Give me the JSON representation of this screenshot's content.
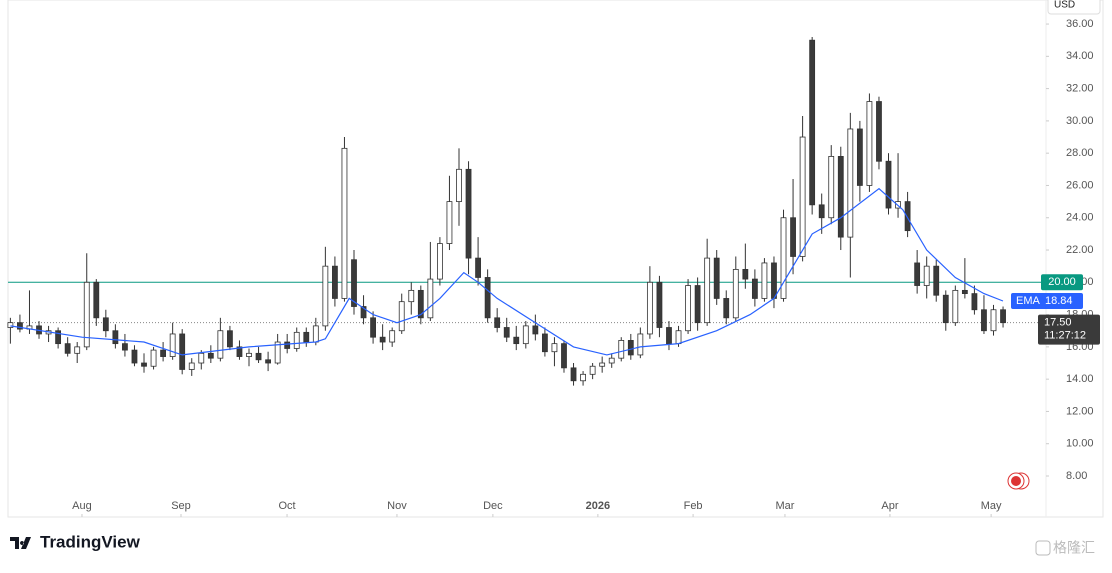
{
  "header": {
    "currency": "USD"
  },
  "chart_data": {
    "type": "candlestick",
    "up_color": "#ffffff",
    "down_color": "#3a3a3a",
    "wick_color": "#333333",
    "x": [
      0,
      2,
      4,
      6,
      8,
      10,
      12,
      14,
      16,
      18,
      20,
      22,
      24,
      26,
      28,
      30,
      32,
      34,
      36,
      38,
      40,
      42,
      44,
      46,
      48,
      50,
      52,
      54,
      56,
      58,
      60,
      62,
      64,
      66,
      68,
      70,
      72,
      74,
      76,
      78,
      80,
      82,
      84,
      86,
      88,
      90,
      92,
      94,
      96,
      98,
      100,
      102,
      104,
      106,
      108,
      110,
      112,
      114,
      116,
      118,
      120,
      122,
      124,
      126,
      128,
      130,
      132,
      134,
      136,
      138,
      140,
      142,
      144,
      146,
      148,
      150,
      152,
      154,
      156,
      158,
      160,
      162,
      164,
      166,
      168,
      170,
      172,
      174,
      176,
      178,
      180,
      182,
      184,
      186,
      188,
      190,
      192,
      194,
      196,
      198,
      200,
      202,
      204,
      206,
      208
    ],
    "open": [
      17.2,
      17.5,
      17.1,
      17.3,
      16.8,
      17.0,
      16.2,
      15.6,
      16.0,
      20.0,
      17.8,
      17.0,
      16.2,
      15.8,
      15.0,
      14.8,
      15.8,
      15.4,
      16.8,
      14.6,
      15.0,
      15.6,
      15.3,
      17.0,
      16.0,
      15.4,
      15.6,
      15.2,
      15.0,
      16.3,
      15.9,
      16.9,
      16.3,
      17.3,
      21.0,
      19.0,
      21.4,
      18.5,
      17.8,
      16.6,
      16.3,
      17.0,
      18.8,
      19.5,
      17.8,
      20.2,
      22.4,
      25.0,
      27.0,
      21.5,
      20.3,
      17.8,
      17.2,
      16.6,
      16.2,
      17.3,
      16.8,
      15.7,
      16.2,
      14.7,
      13.9,
      14.3,
      14.8,
      15.0,
      15.3,
      16.4,
      15.5,
      16.8,
      20.0,
      17.2,
      16.2,
      17.0,
      19.8,
      17.5,
      21.5,
      19.0,
      17.8,
      20.8,
      20.2,
      19.0,
      21.2,
      19.0,
      24.0,
      21.6,
      35.0,
      24.8,
      24.0,
      27.8,
      22.8,
      29.5,
      26.0,
      31.2,
      27.5,
      24.6,
      25.0,
      21.2,
      19.8,
      21.0,
      19.2,
      17.5,
      19.5,
      19.3,
      18.3,
      17.0,
      18.3
    ],
    "high": [
      17.8,
      18.0,
      19.5,
      17.6,
      17.3,
      17.2,
      16.6,
      16.3,
      21.8,
      20.2,
      18.3,
      17.4,
      16.8,
      16.1,
      15.6,
      16.0,
      16.3,
      17.5,
      17.1,
      15.3,
      15.8,
      16.1,
      17.8,
      17.3,
      16.4,
      15.9,
      16.0,
      15.7,
      16.8,
      16.8,
      17.2,
      17.2,
      17.8,
      22.2,
      21.6,
      29.0,
      22.0,
      19.2,
      18.2,
      17.4,
      17.2,
      19.3,
      20.0,
      19.8,
      22.5,
      22.8,
      26.6,
      28.3,
      27.5,
      22.8,
      20.8,
      18.4,
      17.8,
      17.3,
      17.6,
      18.0,
      17.2,
      16.6,
      16.4,
      15.0,
      14.5,
      15.0,
      15.4,
      15.6,
      16.6,
      16.8,
      17.2,
      21.0,
      20.4,
      17.6,
      17.3,
      20.2,
      20.3,
      22.7,
      22.0,
      19.5,
      21.6,
      22.4,
      20.8,
      21.5,
      21.6,
      24.5,
      26.4,
      30.3,
      35.2,
      25.5,
      28.5,
      28.4,
      30.5,
      30.0,
      31.7,
      31.5,
      28.0,
      28.0,
      25.6,
      22.0,
      21.6,
      21.4,
      19.5,
      19.8,
      21.5,
      19.8,
      19.2,
      18.6,
      18.5
    ],
    "low": [
      16.2,
      16.9,
      16.8,
      16.5,
      16.3,
      15.9,
      15.4,
      15.0,
      15.8,
      17.3,
      16.6,
      15.9,
      15.4,
      14.8,
      14.4,
      14.6,
      15.1,
      15.2,
      14.3,
      14.2,
      14.6,
      15.0,
      15.1,
      15.8,
      15.2,
      14.8,
      15.0,
      14.5,
      14.9,
      15.6,
      15.7,
      16.0,
      16.1,
      17.0,
      18.5,
      18.8,
      18.0,
      17.4,
      16.2,
      15.8,
      16.0,
      16.8,
      18.0,
      17.4,
      17.6,
      19.8,
      22.0,
      23.5,
      20.5,
      19.8,
      17.5,
      16.9,
      16.3,
      15.8,
      15.9,
      16.4,
      15.4,
      14.8,
      14.4,
      13.6,
      13.6,
      14.0,
      14.4,
      14.7,
      15.1,
      15.2,
      15.3,
      16.5,
      16.6,
      15.8,
      16.0,
      16.8,
      17.0,
      17.3,
      18.6,
      17.4,
      17.6,
      19.6,
      18.5,
      18.8,
      18.4,
      18.8,
      20.5,
      21.3,
      24.2,
      23.0,
      23.6,
      22.0,
      20.3,
      25.0,
      25.6,
      27.0,
      24.2,
      24.0,
      22.8,
      19.3,
      19.0,
      18.8,
      17.0,
      17.3,
      19.0,
      18.0,
      16.8,
      16.7,
      17.2
    ],
    "close": [
      17.5,
      17.1,
      17.3,
      16.8,
      17.0,
      16.2,
      15.6,
      16.0,
      20.0,
      17.8,
      17.0,
      16.2,
      15.8,
      15.0,
      14.8,
      15.8,
      15.4,
      16.8,
      14.6,
      15.0,
      15.6,
      15.3,
      17.0,
      16.0,
      15.4,
      15.6,
      15.2,
      15.0,
      16.3,
      15.9,
      16.9,
      16.3,
      17.3,
      21.0,
      19.0,
      28.3,
      18.5,
      17.8,
      16.6,
      16.3,
      17.0,
      18.8,
      19.5,
      17.8,
      20.2,
      22.4,
      25.0,
      27.0,
      21.5,
      20.3,
      17.8,
      17.2,
      16.6,
      16.2,
      17.3,
      16.8,
      15.7,
      16.2,
      14.7,
      13.9,
      14.3,
      14.8,
      15.0,
      15.3,
      16.4,
      15.5,
      16.8,
      20.0,
      17.2,
      16.2,
      17.0,
      19.8,
      17.5,
      21.5,
      19.0,
      17.8,
      20.8,
      20.2,
      19.0,
      21.2,
      19.0,
      24.0,
      21.6,
      29.0,
      24.8,
      24.0,
      27.8,
      22.8,
      29.5,
      26.0,
      31.2,
      27.5,
      24.6,
      25.0,
      23.2,
      19.8,
      21.0,
      19.2,
      17.5,
      19.5,
      19.3,
      18.3,
      17.0,
      18.3,
      17.5
    ],
    "ema": {
      "name": "EMA",
      "color": "#2962ff",
      "x": [
        0,
        15,
        28,
        36,
        50,
        64,
        66,
        71,
        76,
        81,
        86,
        90,
        95,
        98,
        102,
        110,
        118,
        125,
        132,
        140,
        148,
        155,
        160,
        164,
        168,
        174,
        182,
        187,
        192,
        198,
        204,
        208
      ],
      "values": [
        17.3,
        16.6,
        16.3,
        15.5,
        16.0,
        16.3,
        16.5,
        19.0,
        18.0,
        17.5,
        18.0,
        19.0,
        20.6,
        20.0,
        19.0,
        17.5,
        16.0,
        15.5,
        16.0,
        16.2,
        17.0,
        18.0,
        19.0,
        21.0,
        23.0,
        24.0,
        25.8,
        24.5,
        22.0,
        20.3,
        19.3,
        18.84
      ]
    },
    "hline": {
      "value": 20,
      "label": "20.00",
      "color": "#089981"
    },
    "last_price": {
      "value": 17.5,
      "label": "17.50",
      "countdown": "11:27:12"
    },
    "xlim": [
      -0.5,
      217
    ],
    "xticks": [
      {
        "value": 15,
        "label": "Aug"
      },
      {
        "value": 35.75,
        "label": "Sep"
      },
      {
        "value": 57.97,
        "label": "Oct"
      },
      {
        "value": 81,
        "label": "Nov"
      },
      {
        "value": 101.1,
        "label": "Dec"
      },
      {
        "value": 123.1,
        "label": "2026"
      },
      {
        "value": 143.05,
        "label": "Feb"
      },
      {
        "value": 162.3,
        "label": "Mar"
      },
      {
        "value": 184.3,
        "label": "Apr"
      },
      {
        "value": 205.5,
        "label": "May"
      }
    ],
    "ylim": [
      5.46,
      37.49
    ],
    "yticks": [
      {
        "value": 8,
        "label": "8.00"
      },
      {
        "value": 10,
        "label": "10.00"
      },
      {
        "value": 12,
        "label": "12.00"
      },
      {
        "value": 14,
        "label": "14.00"
      },
      {
        "value": 16,
        "label": "16.00"
      },
      {
        "value": 18,
        "label": "18.00"
      },
      {
        "value": 20,
        "label": "20.00"
      },
      {
        "value": 22,
        "label": "22.00"
      },
      {
        "value": 24,
        "label": "24.00"
      },
      {
        "value": 26,
        "label": "26.00"
      },
      {
        "value": 28,
        "label": "28.00"
      },
      {
        "value": 30,
        "label": "30.00"
      },
      {
        "value": 32,
        "label": "32.00"
      },
      {
        "value": 34,
        "label": "34.00"
      },
      {
        "value": 36,
        "label": "36.00"
      }
    ]
  },
  "footer": {
    "brand": "TradingView",
    "watermark": "格隆汇"
  }
}
